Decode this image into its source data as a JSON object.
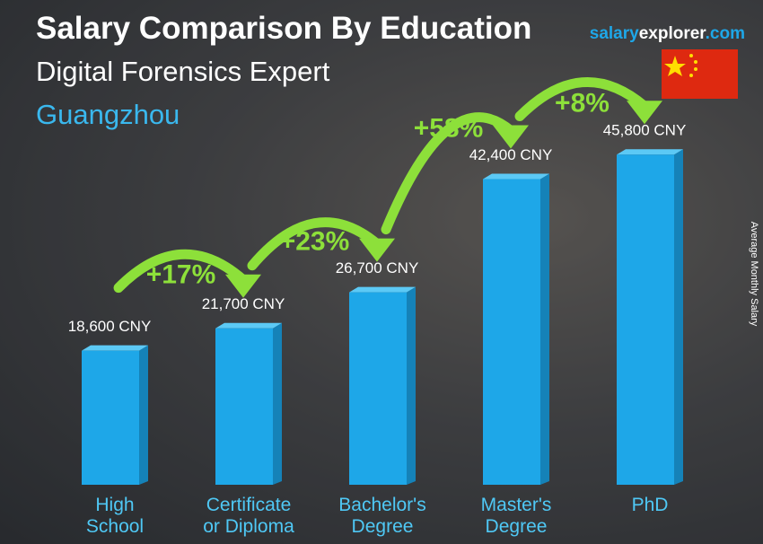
{
  "chart_data": {
    "type": "bar",
    "title": "Salary Comparison By Education",
    "subtitle": "Digital Forensics Expert",
    "location": "Guangzhou",
    "brand": [
      "salary",
      "explorer",
      ".com"
    ],
    "y_label": "Average Monthly Salary",
    "categories": [
      "High School",
      "Certificate or Diploma",
      "Bachelor's Degree",
      "Master's Degree",
      "PhD"
    ],
    "values": [
      18600,
      21700,
      26700,
      42400,
      45800
    ],
    "value_labels": [
      "18,600 CNY",
      "21,700 CNY",
      "26,700 CNY",
      "42,400 CNY",
      "45,800 CNY"
    ],
    "changes": [
      "+17%",
      "+23%",
      "+58%",
      "+8%"
    ],
    "color": "#1ea7e8",
    "change_color": "#8de03a"
  }
}
